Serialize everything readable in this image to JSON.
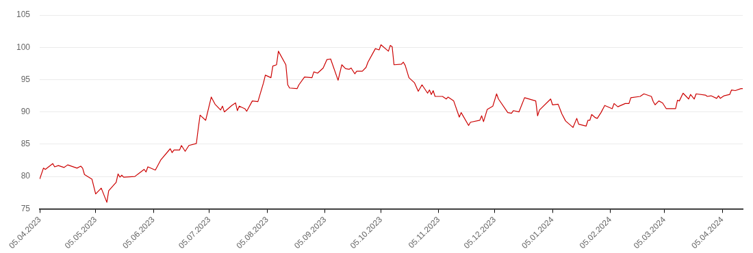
{
  "chart_data": {
    "type": "line",
    "x": [
      "2023-04-05",
      "2023-04-07",
      "2023-04-08",
      "2023-04-12",
      "2023-04-13",
      "2023-04-15",
      "2023-04-18",
      "2023-04-20",
      "2023-04-25",
      "2023-04-27",
      "2023-04-28",
      "2023-04-29",
      "2023-05-03",
      "2023-05-05",
      "2023-05-08",
      "2023-05-11",
      "2023-05-12",
      "2023-05-16",
      "2023-05-17",
      "2023-05-18",
      "2023-05-19",
      "2023-05-20",
      "2023-05-26",
      "2023-05-31",
      "2023-06-01",
      "2023-06-02",
      "2023-06-06",
      "2023-06-09",
      "2023-06-14",
      "2023-06-15",
      "2023-06-16",
      "2023-06-19",
      "2023-06-20",
      "2023-06-22",
      "2023-06-24",
      "2023-06-28",
      "2023-06-29",
      "2023-06-30",
      "2023-07-03",
      "2023-07-06",
      "2023-07-08",
      "2023-07-11",
      "2023-07-12",
      "2023-07-13",
      "2023-07-17",
      "2023-07-19",
      "2023-07-20",
      "2023-07-21",
      "2023-07-24",
      "2023-07-25",
      "2023-07-28",
      "2023-07-31",
      "2023-08-03",
      "2023-08-04",
      "2023-08-07",
      "2023-08-08",
      "2023-08-10",
      "2023-08-11",
      "2023-08-15",
      "2023-08-16",
      "2023-08-17",
      "2023-08-21",
      "2023-08-22",
      "2023-08-25",
      "2023-08-29",
      "2023-08-30",
      "2023-09-01",
      "2023-09-04",
      "2023-09-06",
      "2023-09-08",
      "2023-09-12",
      "2023-09-14",
      "2023-09-16",
      "2023-09-18",
      "2023-09-19",
      "2023-09-21",
      "2023-09-22",
      "2023-09-25",
      "2023-09-27",
      "2023-09-28",
      "2023-10-02",
      "2023-10-04",
      "2023-10-05",
      "2023-10-09",
      "2023-10-10",
      "2023-10-11",
      "2023-10-12",
      "2023-10-16",
      "2023-10-17",
      "2023-10-18",
      "2023-10-20",
      "2023-10-23",
      "2023-10-25",
      "2023-10-27",
      "2023-10-30",
      "2023-10-31",
      "2023-11-01",
      "2023-11-02",
      "2023-11-03",
      "2023-11-07",
      "2023-11-09",
      "2023-11-10",
      "2023-11-13",
      "2023-11-16",
      "2023-11-17",
      "2023-11-21",
      "2023-11-22",
      "2023-11-27",
      "2023-11-28",
      "2023-11-29",
      "2023-12-01",
      "2023-12-04",
      "2023-12-06",
      "2023-12-07",
      "2023-12-12",
      "2023-12-14",
      "2023-12-15",
      "2023-12-18",
      "2023-12-21",
      "2023-12-27",
      "2023-12-28",
      "2023-12-29",
      "2024-01-04",
      "2024-01-05",
      "2024-01-08",
      "2024-01-10",
      "2024-01-12",
      "2024-01-16",
      "2024-01-18",
      "2024-01-19",
      "2024-01-23",
      "2024-01-24",
      "2024-01-25",
      "2024-01-26",
      "2024-01-28",
      "2024-01-29",
      "2024-01-31",
      "2024-02-02",
      "2024-02-06",
      "2024-02-07",
      "2024-02-09",
      "2024-02-13",
      "2024-02-15",
      "2024-02-16",
      "2024-02-21",
      "2024-02-23",
      "2024-02-27",
      "2024-02-28",
      "2024-02-29",
      "2024-03-02",
      "2024-03-04",
      "2024-03-06",
      "2024-03-11",
      "2024-03-12",
      "2024-03-13",
      "2024-03-15",
      "2024-03-18",
      "2024-03-19",
      "2024-03-21",
      "2024-03-22",
      "2024-03-27",
      "2024-03-28",
      "2024-03-30",
      "2024-04-02",
      "2024-04-03",
      "2024-04-04",
      "2024-04-06",
      "2024-04-09",
      "2024-04-10",
      "2024-04-12",
      "2024-04-15",
      "2024-04-16"
    ],
    "series": [
      {
        "color": "#cc0000",
        "values": [
          79.6,
          81.3,
          81.1,
          82.0,
          81.5,
          81.7,
          81.4,
          81.8,
          81.3,
          81.6,
          81.3,
          80.3,
          79.6,
          77.3,
          78.2,
          76.0,
          77.8,
          79.1,
          80.4,
          79.9,
          80.2,
          79.9,
          80.0,
          81.1,
          80.7,
          81.5,
          81.0,
          82.6,
          84.3,
          83.7,
          84.1,
          84.1,
          84.8,
          83.9,
          84.8,
          85.1,
          87.4,
          89.5,
          88.7,
          92.3,
          91.2,
          90.3,
          90.9,
          90.0,
          91.0,
          91.4,
          90.2,
          90.9,
          90.5,
          90.1,
          91.7,
          91.6,
          94.5,
          95.7,
          95.3,
          97.1,
          97.3,
          99.4,
          97.3,
          94.2,
          93.7,
          93.6,
          94.2,
          95.4,
          95.3,
          96.2,
          96.0,
          96.8,
          98.1,
          98.2,
          94.9,
          97.3,
          96.7,
          96.6,
          96.8,
          95.9,
          96.3,
          96.3,
          96.9,
          97.7,
          99.8,
          99.6,
          100.4,
          99.4,
          100.3,
          100.1,
          97.3,
          97.4,
          97.7,
          97.2,
          95.3,
          94.5,
          93.2,
          94.2,
          92.9,
          93.4,
          92.7,
          93.3,
          92.4,
          92.4,
          92.0,
          92.3,
          91.7,
          89.2,
          89.9,
          87.9,
          88.4,
          88.7,
          89.4,
          88.5,
          90.4,
          90.9,
          92.8,
          92.0,
          89.9,
          89.8,
          90.2,
          90.0,
          92.2,
          91.7,
          89.4,
          90.3,
          92.0,
          91.1,
          91.2,
          89.7,
          88.6,
          87.6,
          89.0,
          88.1,
          87.8,
          88.7,
          88.7,
          89.6,
          89.1,
          89.0,
          89.9,
          91.0,
          90.5,
          91.3,
          90.8,
          91.3,
          91.3,
          92.2,
          92.4,
          92.8,
          92.4,
          91.6,
          91.1,
          91.7,
          91.4,
          90.5,
          90.5,
          91.8,
          91.7,
          92.9,
          92.0,
          92.7,
          92.0,
          92.8,
          92.6,
          92.4,
          92.5,
          92.1,
          92.5,
          92.1,
          92.5,
          92.7,
          93.4,
          93.3,
          93.6,
          93.6
        ]
      }
    ],
    "xlim": [
      "2023-04-05",
      "2024-04-16"
    ],
    "xticks": [
      {
        "value": "2023-04-05",
        "label": "05.04.2023"
      },
      {
        "value": "2023-05-05",
        "label": "05.05.2023"
      },
      {
        "value": "2023-06-05",
        "label": "05.06.2023"
      },
      {
        "value": "2023-07-05",
        "label": "05.07.2023"
      },
      {
        "value": "2023-08-05",
        "label": "05.08.2023"
      },
      {
        "value": "2023-09-05",
        "label": "05.09.2023"
      },
      {
        "value": "2023-10-05",
        "label": "05.10.2023"
      },
      {
        "value": "2023-11-05",
        "label": "05.11.2023"
      },
      {
        "value": "2023-12-05",
        "label": "05.12.2023"
      },
      {
        "value": "2024-01-05",
        "label": "05.01.2024"
      },
      {
        "value": "2024-02-05",
        "label": "05.02.2024"
      },
      {
        "value": "2024-03-05",
        "label": "05.03.2024"
      },
      {
        "value": "2024-04-05",
        "label": "05.04.2024"
      }
    ],
    "ylim": [
      75,
      105
    ],
    "yticks": [
      75,
      80,
      85,
      90,
      95,
      100,
      105
    ],
    "grid": "y",
    "legend": false,
    "marker": "none",
    "line_style": "solid"
  }
}
